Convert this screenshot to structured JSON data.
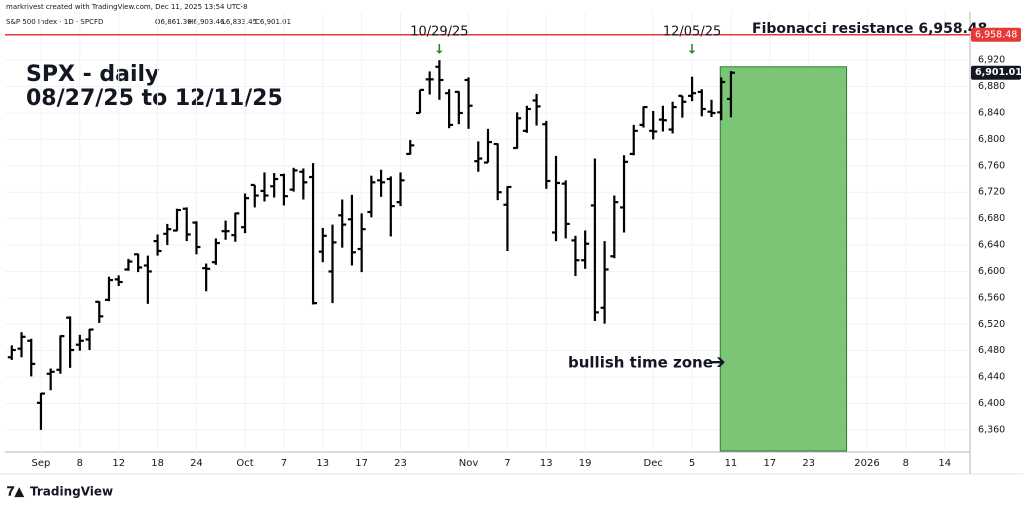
{
  "chart_data": {
    "type": "ohlc",
    "credit": "markrivest created with TradingView.com, Dec 11, 2025 13:54 UTC-8",
    "symbol": "S&P 500 Index · 1D · SPCFD",
    "legend_values": [
      "O6,861.30",
      "H6,903.46",
      "L6,833.45",
      "C6,901.01"
    ],
    "title": "SPX - daily",
    "subtitle": "08/27/25 to 12/11/25",
    "brand": "TradingView",
    "color": "#000000",
    "open": [
      6470,
      6483,
      6495,
      6401,
      6445,
      6451,
      6530,
      6489,
      6497,
      6554,
      6557,
      6588,
      6603,
      6626,
      6609,
      6646,
      6657,
      6662,
      6695,
      6674,
      6605,
      6614,
      6661,
      6655,
      6667,
      6731,
      6722,
      6729,
      6746,
      6724,
      6751,
      6743,
      6630,
      6600,
      6685,
      6679,
      6634,
      6690,
      6738,
      6740,
      6705,
      6778,
      6840,
      6891,
      6910,
      6870,
      6872,
      6890,
      6767,
      6765,
      6793,
      6701,
      6787,
      6813,
      6859,
      6823,
      6659,
      6733,
      6647,
      6617,
      6700,
      6545,
      6623,
      6697,
      6778,
      6822,
      6813,
      6830,
      6815,
      6866,
      6866,
      6872,
      6842,
      6841,
      6861.3
    ],
    "high": [
      6488,
      6508,
      6498,
      6416,
      6453,
      6503,
      6532,
      6504,
      6513,
      6555,
      6592,
      6594,
      6619,
      6627,
      6624,
      6656,
      6672,
      6695,
      6697,
      6676,
      6612,
      6650,
      6677,
      6689,
      6718,
      6731,
      6750,
      6749,
      6748,
      6757,
      6756,
      6764,
      6666,
      6671,
      6709,
      6716,
      6688,
      6745,
      6754,
      6744,
      6750,
      6799,
      6875,
      6903,
      6920,
      6876,
      6873,
      6894,
      6797,
      6816,
      6794,
      6729,
      6841,
      6851,
      6869,
      6828,
      6775,
      6738,
      6654,
      6662,
      6771,
      6646,
      6715,
      6776,
      6822,
      6850,
      6843,
      6851,
      6857,
      6866,
      6895,
      6876,
      6860,
      6894,
      6903.46
    ],
    "low": [
      6466,
      6470,
      6441,
      6360,
      6420,
      6445,
      6454,
      6480,
      6481,
      6522,
      6555,
      6578,
      6601,
      6599,
      6551,
      6624,
      6640,
      6661,
      6646,
      6626,
      6570,
      6610,
      6648,
      6645,
      6658,
      6697,
      6706,
      6712,
      6700,
      6721,
      6709,
      6550,
      6614,
      6552,
      6636,
      6609,
      6599,
      6682,
      6713,
      6653,
      6699,
      6777,
      6840,
      6868,
      6860,
      6817,
      6823,
      6816,
      6751,
      6765,
      6708,
      6631,
      6786,
      6810,
      6821,
      6725,
      6646,
      6650,
      6593,
      6604,
      6525,
      6521,
      6620,
      6659,
      6776,
      6818,
      6800,
      6812,
      6809,
      6833,
      6858,
      6835,
      6834,
      6829,
      6833.45
    ],
    "close": [
      6481,
      6501,
      6460,
      6415,
      6448,
      6502,
      6481,
      6495,
      6512,
      6532,
      6587,
      6584,
      6615,
      6606,
      6600,
      6631,
      6664,
      6693,
      6656,
      6637,
      6604,
      6643,
      6661,
      6688,
      6711,
      6715,
      6715,
      6740,
      6714,
      6753,
      6735,
      6552,
      6654,
      6644,
      6671,
      6629,
      6664,
      6735,
      6735,
      6699,
      6738,
      6791,
      6875,
      6891,
      6890,
      6822,
      6840,
      6851,
      6771,
      6796,
      6720,
      6728,
      6832,
      6846,
      6850,
      6737,
      6734,
      6672,
      6617,
      6642,
      6538,
      6603,
      6705,
      6766,
      6813,
      6849,
      6812,
      6829,
      6849,
      6857,
      6870,
      6846,
      6840,
      6887,
      6901.01
    ],
    "last_label": "6,901.01",
    "xlim": [
      -0.7,
      98.6
    ],
    "xticks": [
      {
        "value": 3,
        "label": "Sep"
      },
      {
        "value": 7,
        "label": "8"
      },
      {
        "value": 11,
        "label": "12"
      },
      {
        "value": 15,
        "label": "18"
      },
      {
        "value": 19,
        "label": "24"
      },
      {
        "value": 24,
        "label": "Oct"
      },
      {
        "value": 28,
        "label": "7"
      },
      {
        "value": 32,
        "label": "13"
      },
      {
        "value": 36,
        "label": "17"
      },
      {
        "value": 40,
        "label": "23"
      },
      {
        "value": 47,
        "label": "Nov"
      },
      {
        "value": 51,
        "label": "7"
      },
      {
        "value": 55,
        "label": "13"
      },
      {
        "value": 59,
        "label": "19"
      },
      {
        "value": 66,
        "label": "Dec"
      },
      {
        "value": 70,
        "label": "5"
      },
      {
        "value": 74,
        "label": "11"
      },
      {
        "value": 78,
        "label": "17"
      },
      {
        "value": 82,
        "label": "23"
      },
      {
        "value": 88,
        "label": "2026"
      },
      {
        "value": 92,
        "label": "8"
      },
      {
        "value": 96,
        "label": "14"
      }
    ],
    "ylim": [
      6326.5,
      6993
    ],
    "yticks": [
      {
        "value": 6360,
        "label": "6,360"
      },
      {
        "value": 6400,
        "label": "6,400"
      },
      {
        "value": 6440,
        "label": "6,440"
      },
      {
        "value": 6480,
        "label": "6,480"
      },
      {
        "value": 6520,
        "label": "6,520"
      },
      {
        "value": 6560,
        "label": "6,560"
      },
      {
        "value": 6600,
        "label": "6,600"
      },
      {
        "value": 6640,
        "label": "6,640"
      },
      {
        "value": 6680,
        "label": "6,680"
      },
      {
        "value": 6720,
        "label": "6,720"
      },
      {
        "value": 6760,
        "label": "6,760"
      },
      {
        "value": 6800,
        "label": "6,800"
      },
      {
        "value": 6840,
        "label": "6,840"
      },
      {
        "value": 6880,
        "label": "6,880"
      },
      {
        "value": 6920,
        "label": "6,920"
      }
    ],
    "grid": true,
    "resistance": {
      "value": 6958.48,
      "label": "Fibonacci resistance 6,958.48",
      "tag": "6,958.48",
      "color": "#e53935"
    },
    "annotations": [
      {
        "label": "10/29/25",
        "x": 44
      },
      {
        "label": "12/05/25",
        "x": 70
      }
    ],
    "annotation_color": "#2e7d32",
    "time_zone": {
      "label": "bullish time zone",
      "start": 72.9,
      "end": 85.9,
      "top": 6910,
      "color": "#7cc576"
    }
  }
}
